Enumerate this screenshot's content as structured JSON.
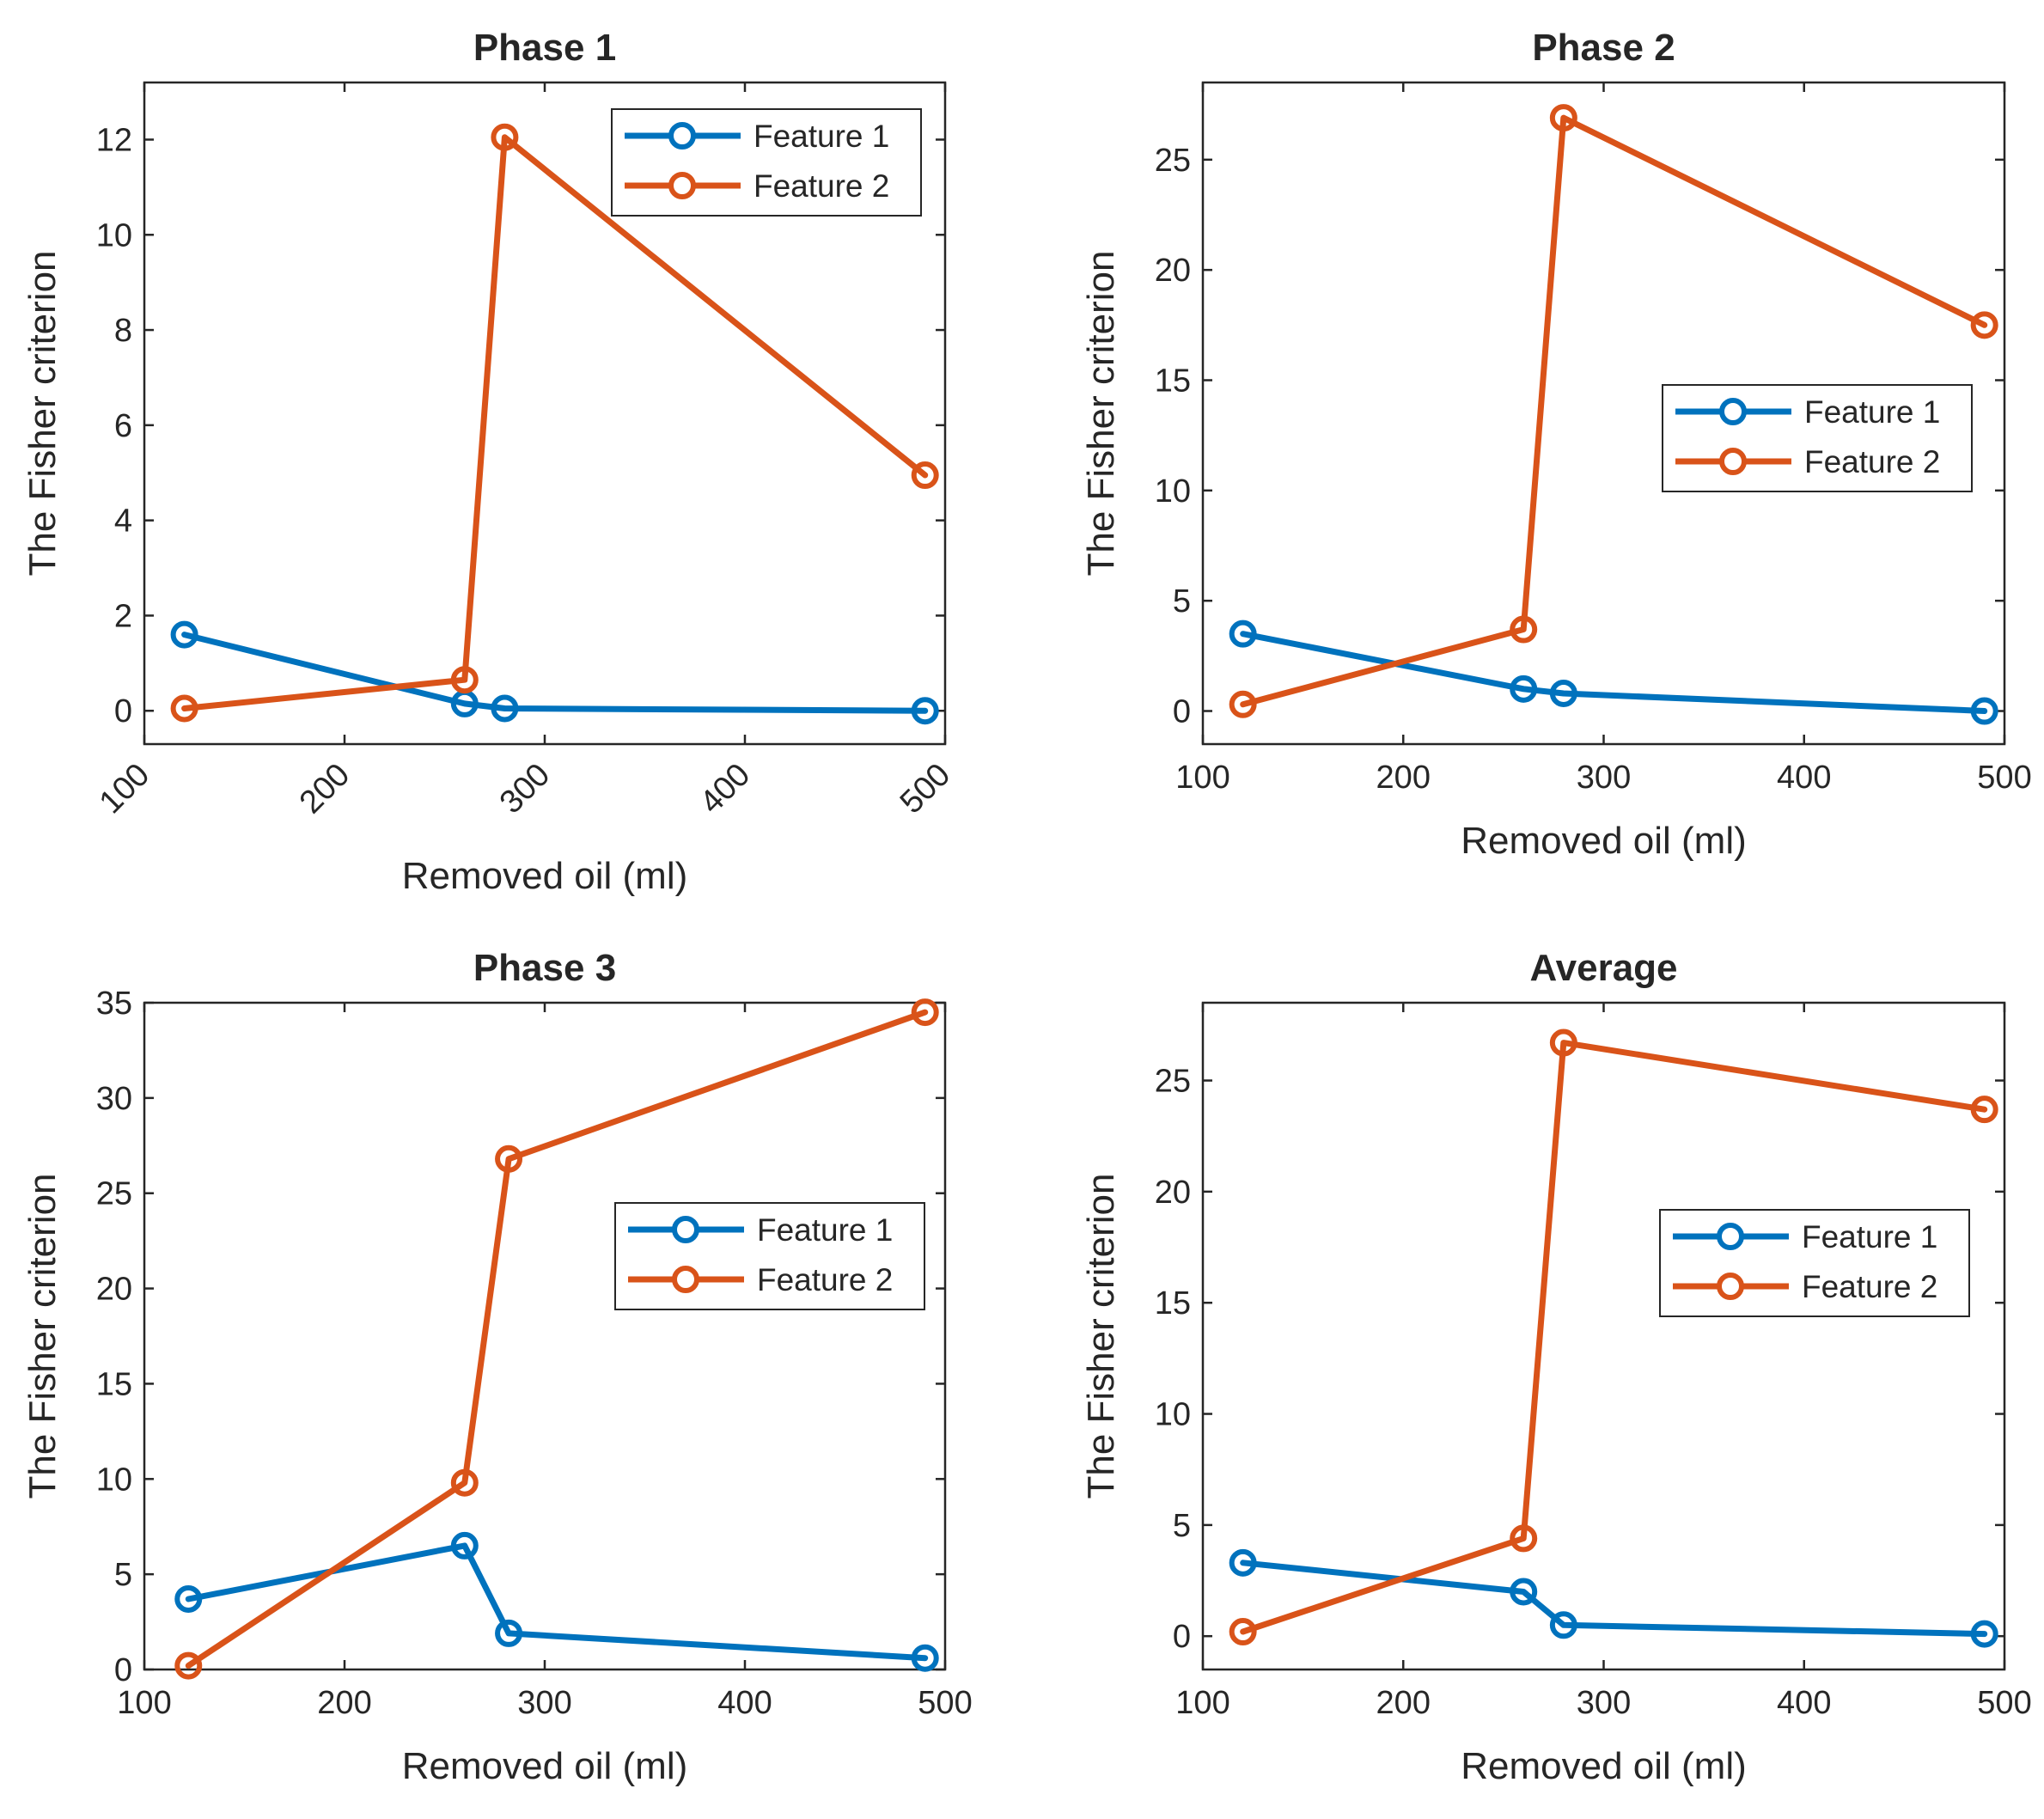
{
  "colors": {
    "feature1": "#0072BD",
    "feature2": "#D95319",
    "axis": "#262626",
    "background": "#ffffff"
  },
  "chart_data": [
    {
      "type": "line",
      "title": "Phase 1",
      "xlabel": "Removed oil (ml)",
      "ylabel": "The Fisher criterion",
      "xlim": [
        100,
        500
      ],
      "ylim": [
        -0.7,
        13.2
      ],
      "xticks": [
        100,
        200,
        300,
        400,
        500
      ],
      "yticks": [
        0,
        2,
        4,
        6,
        8,
        10,
        12
      ],
      "xtick_rotation": 45,
      "legend_position": "top-right",
      "x": [
        120,
        260,
        280,
        490
      ],
      "series": [
        {
          "name": "Feature 1",
          "values": [
            1.6,
            0.15,
            0.05,
            0.0
          ]
        },
        {
          "name": "Feature 2",
          "values": [
            0.05,
            0.65,
            12.05,
            4.95
          ]
        }
      ]
    },
    {
      "type": "line",
      "title": "Phase 2",
      "xlabel": "Removed oil (ml)",
      "ylabel": "The Fisher criterion",
      "xlim": [
        100,
        500
      ],
      "ylim": [
        -1.5,
        28.5
      ],
      "xticks": [
        100,
        200,
        300,
        400,
        500
      ],
      "yticks": [
        0,
        5,
        10,
        15,
        20,
        25
      ],
      "xtick_rotation": 0,
      "legend_position": "middle-right",
      "x": [
        120,
        260,
        280,
        490
      ],
      "series": [
        {
          "name": "Feature 1",
          "values": [
            3.5,
            1.0,
            0.8,
            0.0
          ]
        },
        {
          "name": "Feature 2",
          "values": [
            0.3,
            3.7,
            26.9,
            17.5
          ]
        }
      ]
    },
    {
      "type": "line",
      "title": "Phase 3",
      "xlabel": "Removed oil (ml)",
      "ylabel": "The Fisher criterion",
      "xlim": [
        100,
        500
      ],
      "ylim": [
        0,
        35
      ],
      "xticks": [
        100,
        200,
        300,
        400,
        500
      ],
      "yticks": [
        0,
        5,
        10,
        15,
        20,
        25,
        30,
        35
      ],
      "xtick_rotation": 0,
      "legend_position": "middle-right",
      "x": [
        122,
        260,
        282,
        490
      ],
      "series": [
        {
          "name": "Feature 1",
          "values": [
            3.7,
            6.5,
            1.9,
            0.6
          ]
        },
        {
          "name": "Feature 2",
          "values": [
            0.2,
            9.8,
            26.8,
            34.5
          ]
        }
      ]
    },
    {
      "type": "line",
      "title": "Average",
      "xlabel": "Removed oil (ml)",
      "ylabel": "The Fisher criterion",
      "xlim": [
        100,
        500
      ],
      "ylim": [
        -1.5,
        28.5
      ],
      "xticks": [
        100,
        200,
        300,
        400,
        500
      ],
      "yticks": [
        0,
        5,
        10,
        15,
        20,
        25
      ],
      "xtick_rotation": 0,
      "legend_position": "middle-right",
      "x": [
        120,
        260,
        280,
        490
      ],
      "series": [
        {
          "name": "Feature 1",
          "values": [
            3.3,
            2.0,
            0.5,
            0.1
          ]
        },
        {
          "name": "Feature 2",
          "values": [
            0.2,
            4.4,
            26.7,
            23.7
          ]
        }
      ]
    }
  ]
}
